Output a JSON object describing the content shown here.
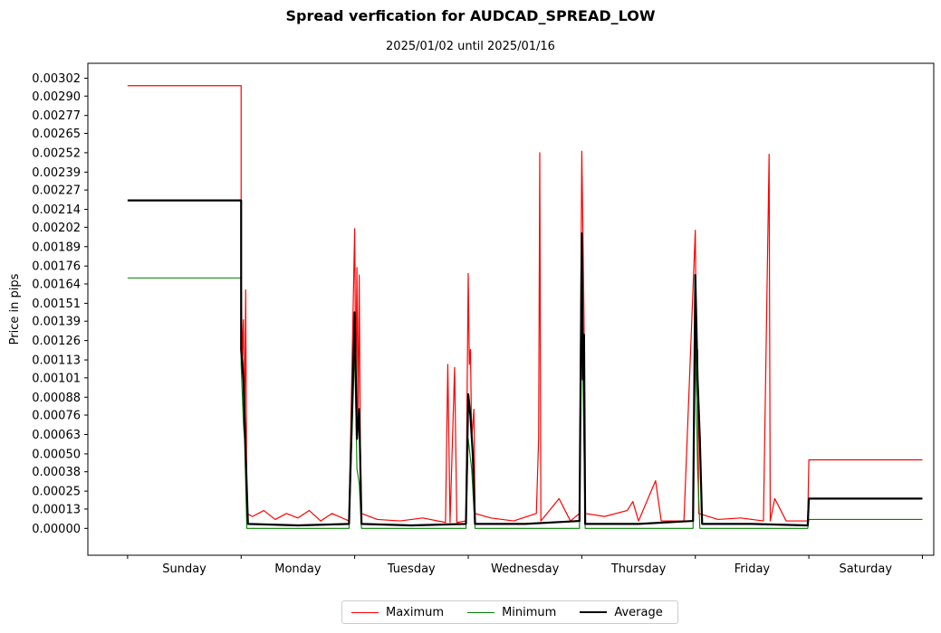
{
  "chart_data": {
    "type": "line",
    "title": "Spread verfication for AUDCAD_SPREAD_LOW",
    "subtitle": "2025/01/02 until 2025/01/16",
    "xlabel": "",
    "ylabel": "Price in pips",
    "categories": [
      "Sunday",
      "Monday",
      "Tuesday",
      "Wednesday",
      "Thursday",
      "Friday",
      "Saturday"
    ],
    "y_ticks": [
      "0.00000",
      "0.00013",
      "0.00025",
      "0.00038",
      "0.00050",
      "0.00063",
      "0.00076",
      "0.00088",
      "0.00101",
      "0.00113",
      "0.00126",
      "0.00139",
      "0.00151",
      "0.00164",
      "0.00176",
      "0.00189",
      "0.00202",
      "0.00214",
      "0.00227",
      "0.00239",
      "0.00252",
      "0.00265",
      "0.00277",
      "0.00290",
      "0.00302"
    ],
    "ylim": [
      -0.00018,
      0.00312
    ],
    "xlim": [
      -0.35,
      7.1
    ],
    "series": [
      {
        "name": "Maximum",
        "color": "#ff0000",
        "points": [
          [
            0,
            0.00297
          ],
          [
            1,
            0.00297
          ],
          [
            1,
            0.00165
          ],
          [
            1.01,
            0.00115
          ],
          [
            1.02,
            0.0014
          ],
          [
            1.03,
            0.0006
          ],
          [
            1.04,
            0.0016
          ],
          [
            1.05,
            0.0001
          ],
          [
            1.1,
            8e-05
          ],
          [
            1.2,
            0.00012
          ],
          [
            1.3,
            6e-05
          ],
          [
            1.4,
            0.0001
          ],
          [
            1.5,
            7e-05
          ],
          [
            1.6,
            0.00012
          ],
          [
            1.7,
            5e-05
          ],
          [
            1.8,
            0.0001
          ],
          [
            1.95,
            5e-05
          ],
          [
            2,
            0.00201
          ],
          [
            2.01,
            0.0009
          ],
          [
            2.02,
            0.00175
          ],
          [
            2.03,
            0.0007
          ],
          [
            2.04,
            0.0017
          ],
          [
            2.05,
            0.00055
          ],
          [
            2.06,
            0.0001
          ],
          [
            2.2,
            6e-05
          ],
          [
            2.4,
            5e-05
          ],
          [
            2.6,
            7e-05
          ],
          [
            2.8,
            4e-05
          ],
          [
            2.82,
            0.0011
          ],
          [
            2.84,
            4e-05
          ],
          [
            2.88,
            0.00108
          ],
          [
            2.9,
            4e-05
          ],
          [
            2.98,
            5e-05
          ],
          [
            3,
            0.00171
          ],
          [
            3.01,
            0.0011
          ],
          [
            3.02,
            0.0012
          ],
          [
            3.03,
            0.0006
          ],
          [
            3.05,
            0.0008
          ],
          [
            3.06,
            0.0001
          ],
          [
            3.2,
            7e-05
          ],
          [
            3.4,
            5e-05
          ],
          [
            3.6,
            0.0001
          ],
          [
            3.62,
            0.0006
          ],
          [
            3.63,
            0.00252
          ],
          [
            3.64,
            5e-05
          ],
          [
            3.8,
            0.0002
          ],
          [
            3.9,
            5e-05
          ],
          [
            3.98,
            0.0001
          ],
          [
            4,
            0.00253
          ],
          [
            4.01,
            0.002
          ],
          [
            4.02,
            0.0014
          ],
          [
            4.03,
            0.0001
          ],
          [
            4.2,
            8e-05
          ],
          [
            4.4,
            0.00012
          ],
          [
            4.45,
            0.00018
          ],
          [
            4.5,
            5e-05
          ],
          [
            4.65,
            0.00032
          ],
          [
            4.7,
            5e-05
          ],
          [
            4.9,
            5e-05
          ],
          [
            5,
            0.002
          ],
          [
            5.01,
            0.0011
          ],
          [
            5.02,
            0.0012
          ],
          [
            5.03,
            0.0001
          ],
          [
            5.2,
            6e-05
          ],
          [
            5.4,
            7e-05
          ],
          [
            5.6,
            5e-05
          ],
          [
            5.65,
            0.00251
          ],
          [
            5.66,
            5e-05
          ],
          [
            5.7,
            0.0002
          ],
          [
            5.8,
            5e-05
          ],
          [
            5.99,
            5e-05
          ],
          [
            6,
            0.00046
          ],
          [
            7,
            0.00046
          ]
        ]
      },
      {
        "name": "Minimum",
        "color": "#008000",
        "points": [
          [
            0,
            0.00168
          ],
          [
            1,
            0.00168
          ],
          [
            1,
            0.0011
          ],
          [
            1.02,
            0.0007
          ],
          [
            1.03,
            0.0006
          ],
          [
            1.05,
            0.0
          ],
          [
            1.95,
            0.0
          ],
          [
            2,
            0.0012
          ],
          [
            2.02,
            0.0004
          ],
          [
            2.04,
            0.0003
          ],
          [
            2.06,
            0.0
          ],
          [
            2.98,
            0.0
          ],
          [
            3,
            0.0006
          ],
          [
            3.03,
            0.0004
          ],
          [
            3.06,
            0.0
          ],
          [
            3.98,
            0.0
          ],
          [
            4,
            0.0015
          ],
          [
            4.02,
            0.0005
          ],
          [
            4.03,
            0.0
          ],
          [
            4.98,
            0.0
          ],
          [
            5,
            0.0013
          ],
          [
            5.02,
            0.0004
          ],
          [
            5.04,
            0.0
          ],
          [
            5.99,
            0.0
          ],
          [
            6,
            6e-05
          ],
          [
            7,
            6e-05
          ]
        ]
      },
      {
        "name": "Average",
        "color": "#000000",
        "points": [
          [
            0,
            0.0022
          ],
          [
            1,
            0.0022
          ],
          [
            1,
            0.0012
          ],
          [
            1.02,
            0.001
          ],
          [
            1.04,
            0.0005
          ],
          [
            1.06,
            3e-05
          ],
          [
            1.5,
            2e-05
          ],
          [
            1.95,
            3e-05
          ],
          [
            2,
            0.00145
          ],
          [
            2.02,
            0.0006
          ],
          [
            2.04,
            0.0008
          ],
          [
            2.06,
            3e-05
          ],
          [
            2.5,
            2e-05
          ],
          [
            2.98,
            3e-05
          ],
          [
            3,
            0.0009
          ],
          [
            3.02,
            0.00075
          ],
          [
            3.04,
            0.0005
          ],
          [
            3.06,
            3e-05
          ],
          [
            3.5,
            3e-05
          ],
          [
            3.98,
            5e-05
          ],
          [
            4,
            0.00198
          ],
          [
            4.01,
            0.001
          ],
          [
            4.02,
            0.0013
          ],
          [
            4.03,
            3e-05
          ],
          [
            4.5,
            3e-05
          ],
          [
            4.98,
            5e-05
          ],
          [
            5,
            0.0017
          ],
          [
            5.02,
            0.001
          ],
          [
            5.04,
            0.0006
          ],
          [
            5.06,
            3e-05
          ],
          [
            5.5,
            3e-05
          ],
          [
            5.99,
            2e-05
          ],
          [
            6,
            0.0002
          ],
          [
            7,
            0.0002
          ]
        ]
      }
    ]
  }
}
